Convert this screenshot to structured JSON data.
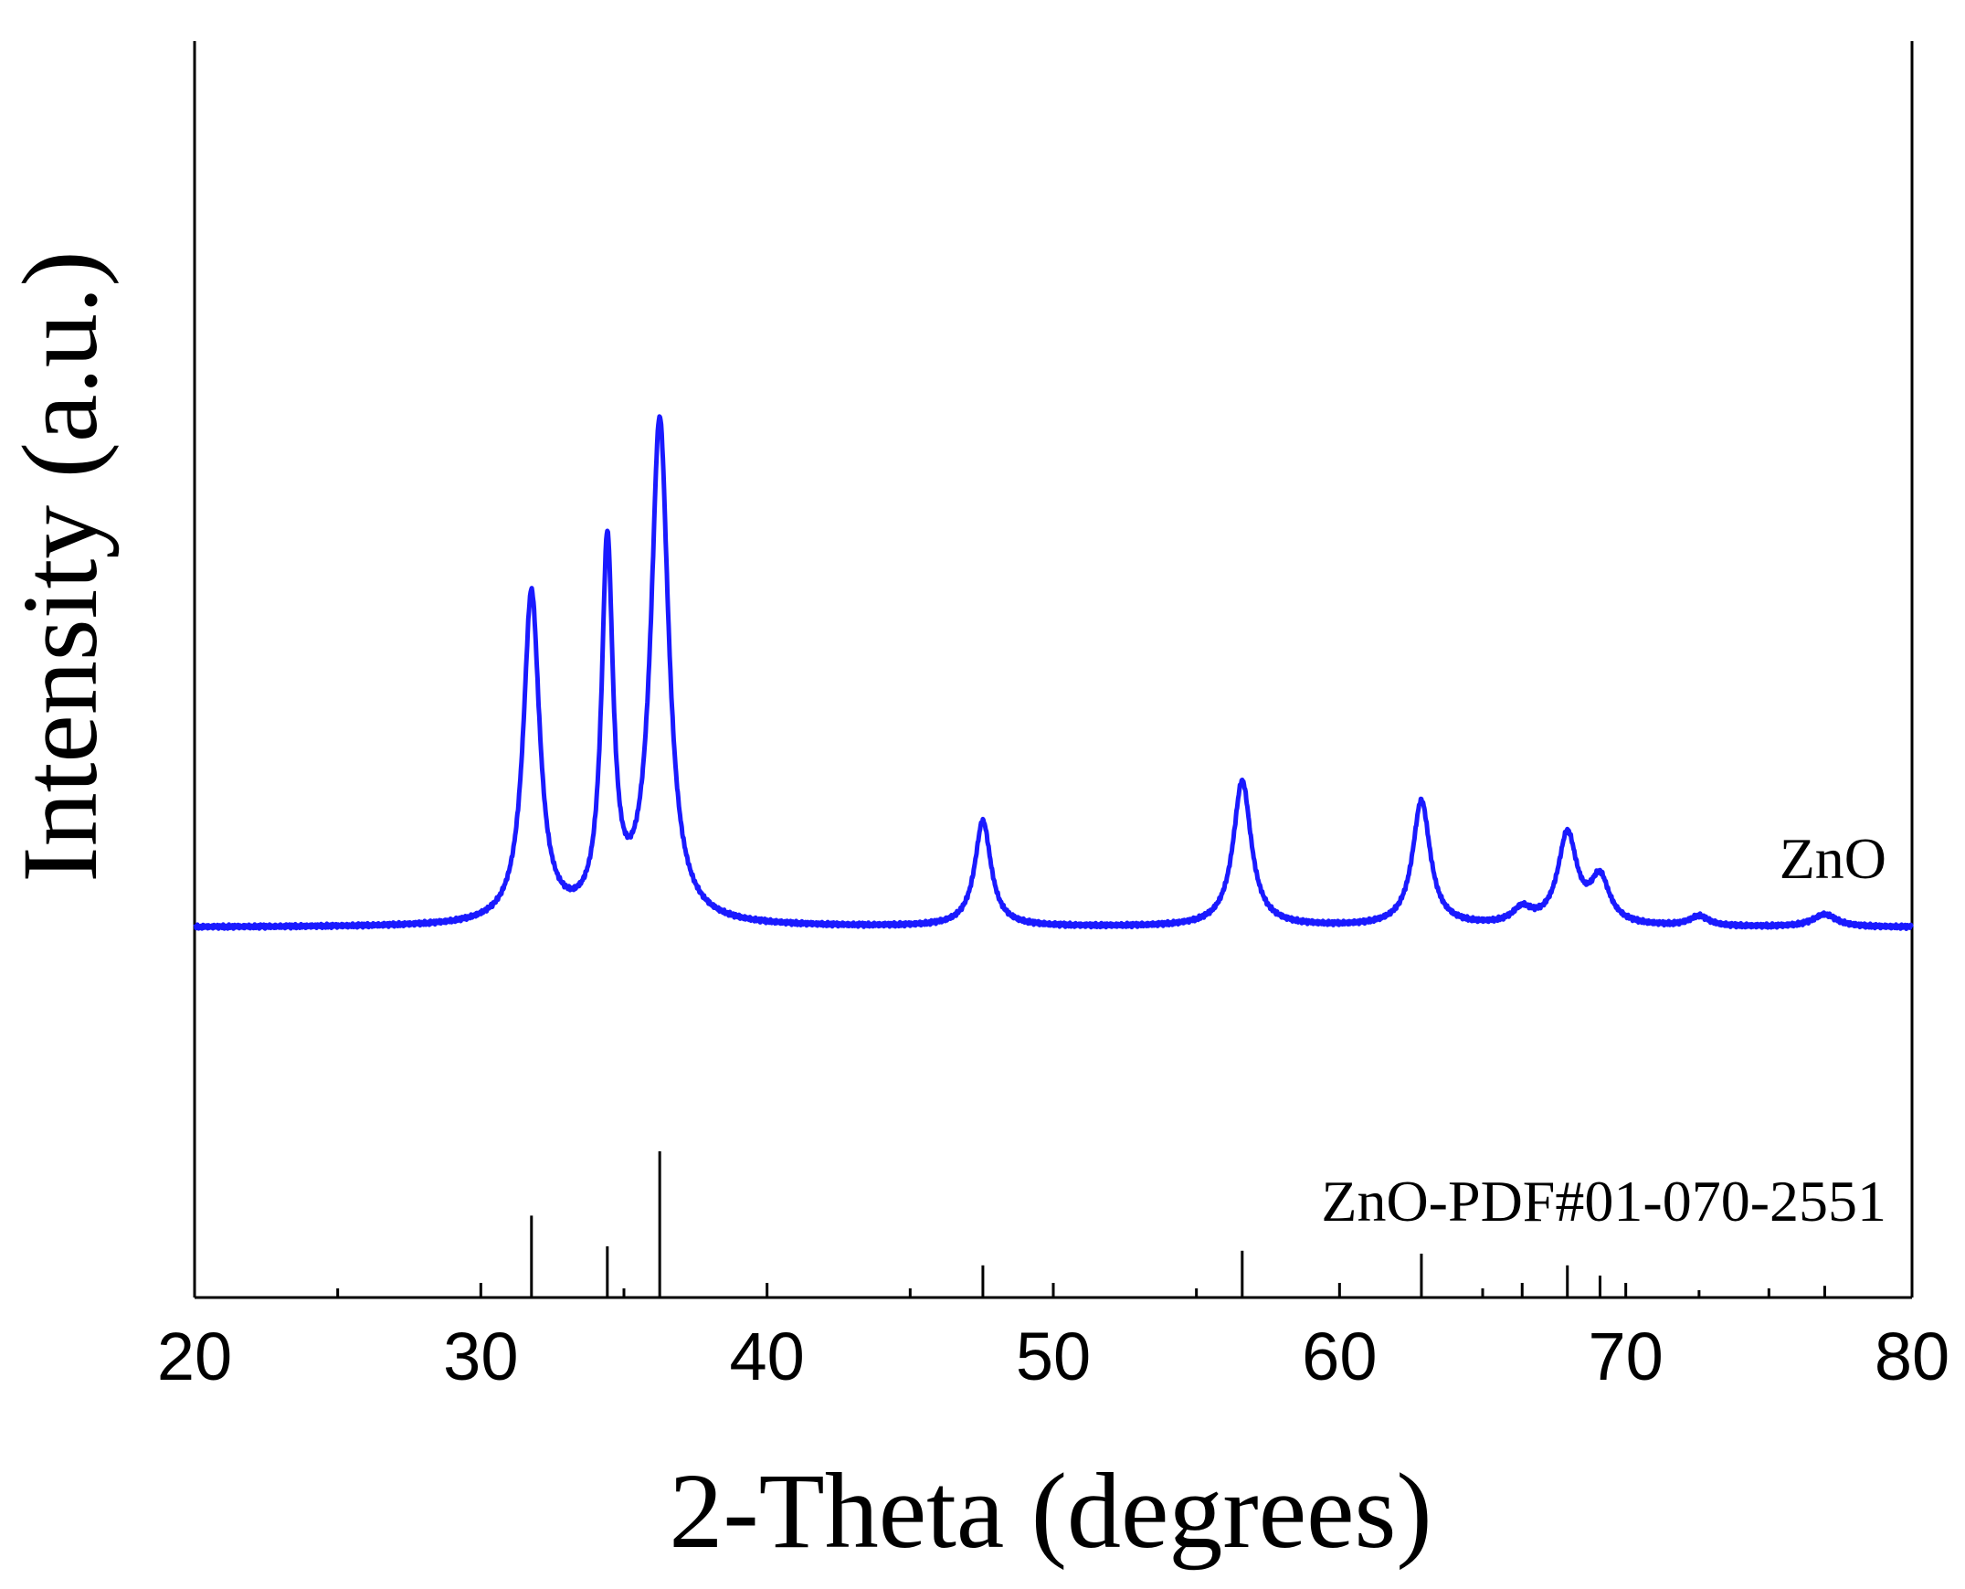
{
  "chart_data": {
    "type": "line",
    "title": "",
    "xlabel": "2-Theta (degrees)",
    "ylabel": "Intensity (a.u.)",
    "xlim": [
      20,
      80
    ],
    "x_ticks": [
      20,
      30,
      40,
      50,
      60,
      70,
      80
    ],
    "x_minor_step": 5,
    "y_ticks_shown": false,
    "grid": false,
    "legend": "none",
    "series": [
      {
        "name": "ZnO",
        "color": "#1a1aff",
        "baseline": 0.09,
        "peaks": [
          {
            "x": 31.77,
            "height": 0.66,
            "width": 0.34
          },
          {
            "x": 34.42,
            "height": 0.74,
            "width": 0.24
          },
          {
            "x": 36.25,
            "height": 1.0,
            "width": 0.37
          },
          {
            "x": 47.54,
            "height": 0.21,
            "width": 0.34
          },
          {
            "x": 56.6,
            "height": 0.29,
            "width": 0.38
          },
          {
            "x": 62.86,
            "height": 0.25,
            "width": 0.37
          },
          {
            "x": 66.38,
            "height": 0.03,
            "width": 0.4
          },
          {
            "x": 67.96,
            "height": 0.18,
            "width": 0.4
          },
          {
            "x": 69.1,
            "height": 0.09,
            "width": 0.4
          },
          {
            "x": 72.56,
            "height": 0.02,
            "width": 0.4
          },
          {
            "x": 76.95,
            "height": 0.025,
            "width": 0.5
          }
        ]
      }
    ],
    "reference": {
      "name": "ZnO-PDF#01-070-2551",
      "color": "#000000",
      "lines": [
        {
          "x": 31.77,
          "intensity": 0.56
        },
        {
          "x": 34.42,
          "intensity": 0.35
        },
        {
          "x": 36.25,
          "intensity": 1.0
        },
        {
          "x": 47.54,
          "intensity": 0.22
        },
        {
          "x": 56.6,
          "intensity": 0.32
        },
        {
          "x": 62.86,
          "intensity": 0.3
        },
        {
          "x": 66.38,
          "intensity": 0.1
        },
        {
          "x": 67.96,
          "intensity": 0.22
        },
        {
          "x": 69.1,
          "intensity": 0.15
        },
        {
          "x": 72.56,
          "intensity": 0.05
        },
        {
          "x": 76.95,
          "intensity": 0.08
        }
      ]
    }
  }
}
